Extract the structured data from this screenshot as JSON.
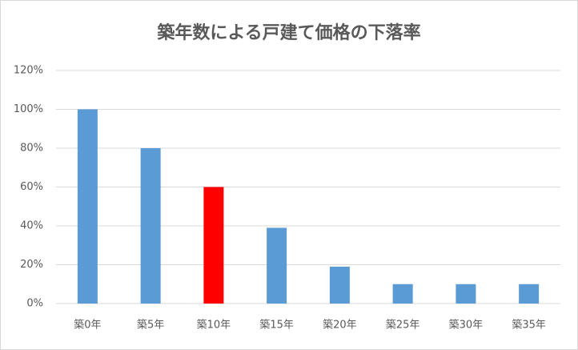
{
  "chart_data": {
    "type": "bar",
    "title": "築年数による戸建て価格の下落率",
    "categories": [
      "築0年",
      "築5年",
      "築10年",
      "築15年",
      "築20年",
      "築25年",
      "築30年",
      "築35年"
    ],
    "values": [
      100,
      80,
      60,
      39,
      19,
      10,
      10,
      10
    ],
    "colors": [
      "#5b9bd5",
      "#5b9bd5",
      "#ff0000",
      "#5b9bd5",
      "#5b9bd5",
      "#5b9bd5",
      "#5b9bd5",
      "#5b9bd5"
    ],
    "ylim": [
      0,
      120
    ],
    "yticks": [
      {
        "value": 0,
        "label": "0%"
      },
      {
        "value": 20,
        "label": "20%"
      },
      {
        "value": 40,
        "label": "40%"
      },
      {
        "value": 60,
        "label": "60%"
      },
      {
        "value": 80,
        "label": "80%"
      },
      {
        "value": 100,
        "label": "100%"
      },
      {
        "value": 120,
        "label": "120%"
      }
    ],
    "grid": true
  }
}
